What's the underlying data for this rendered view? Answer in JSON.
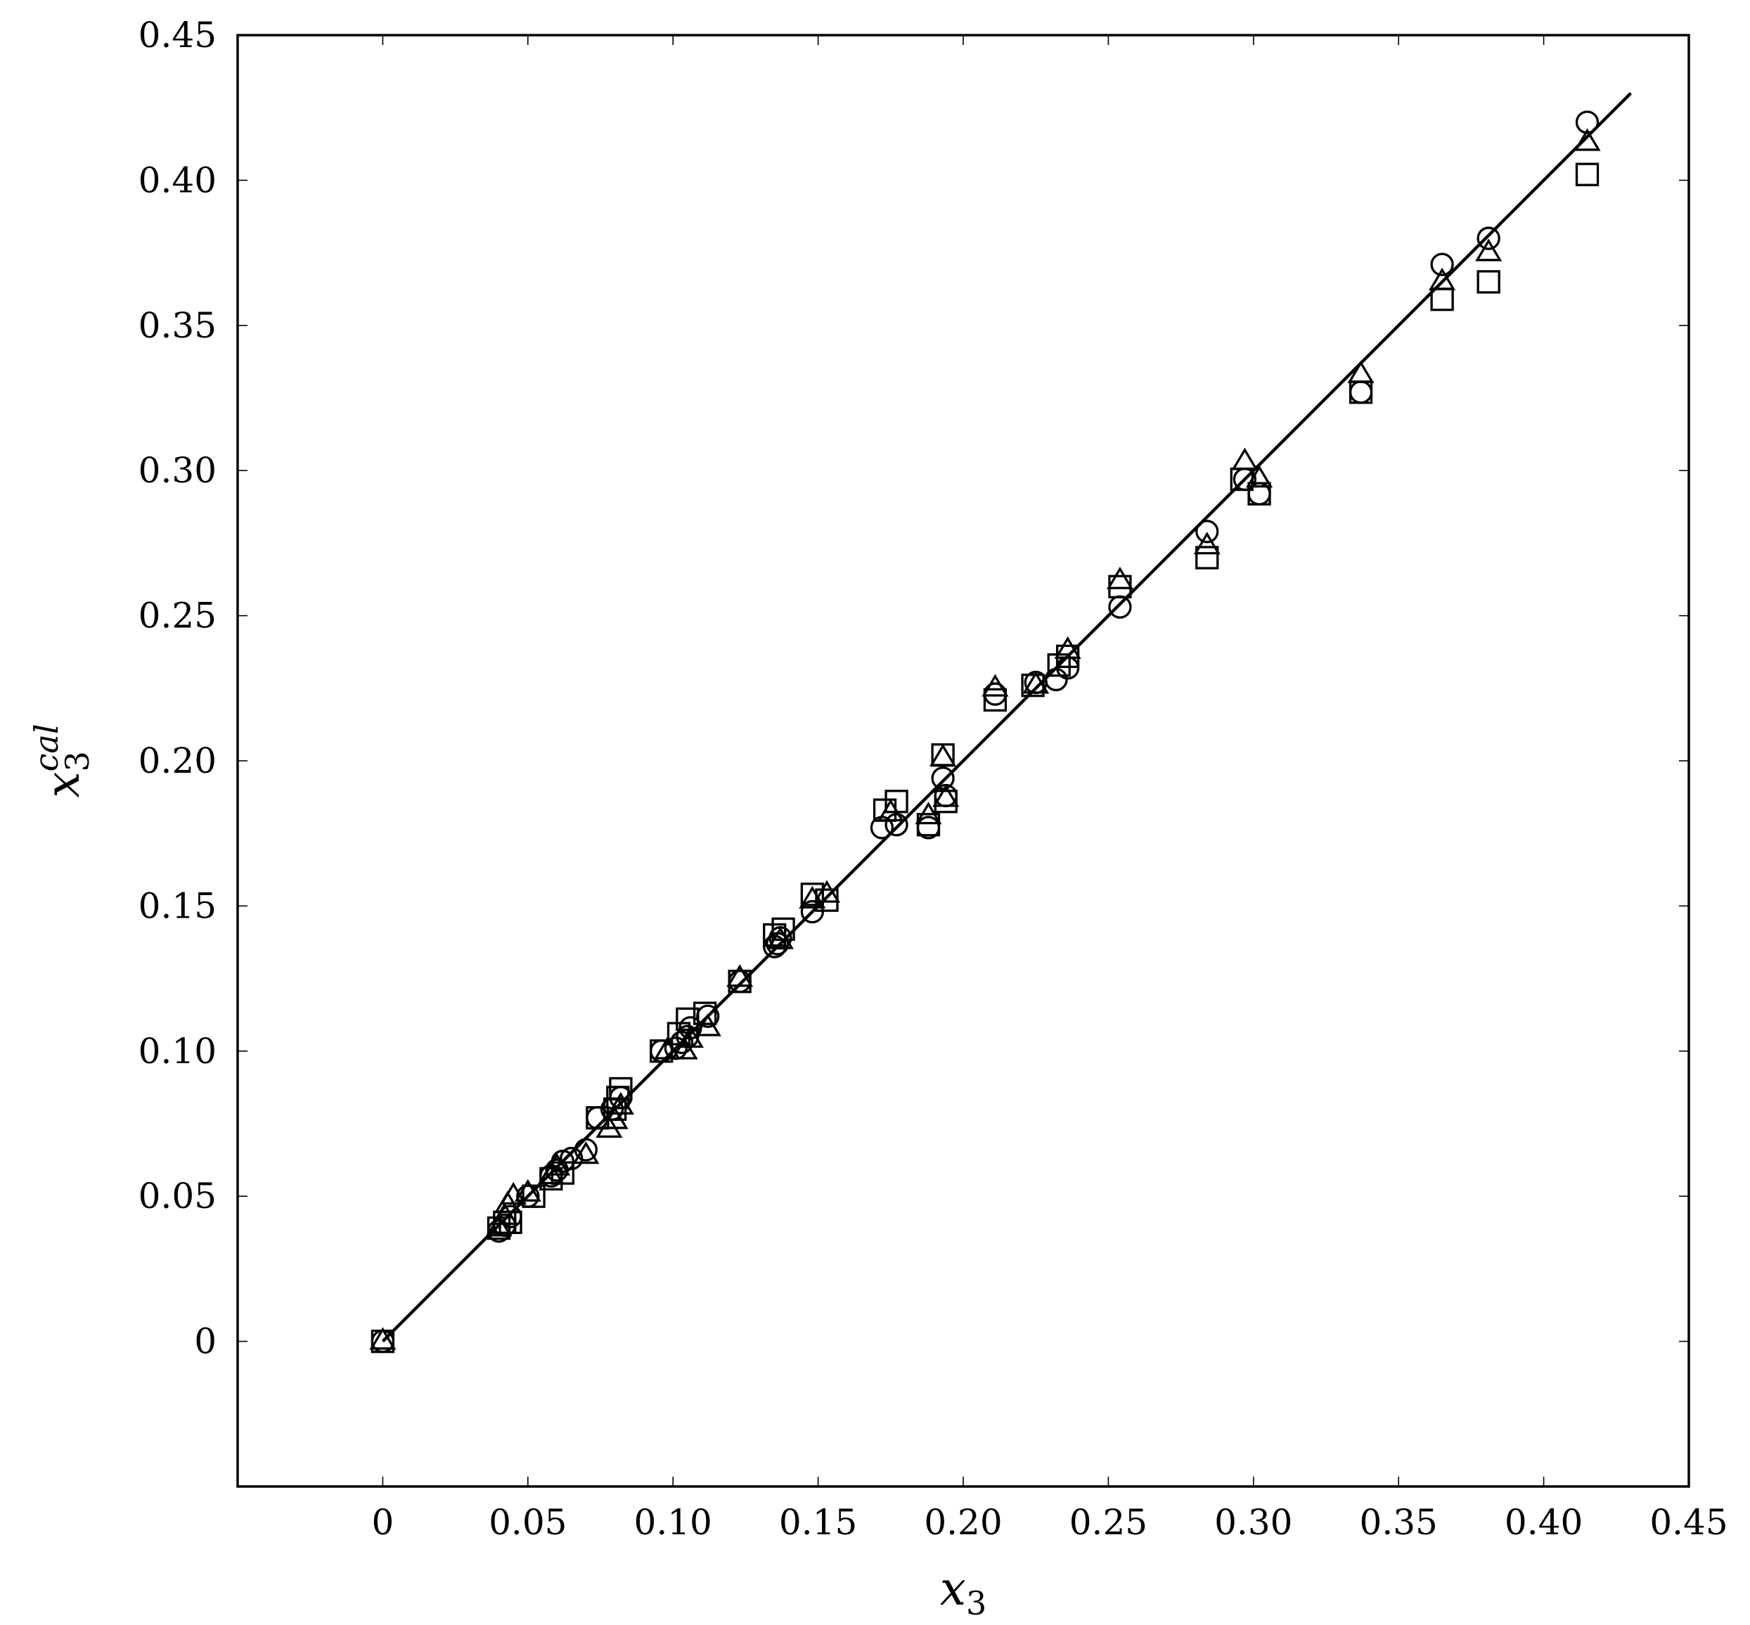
{
  "chart_data": {
    "type": "scatter",
    "title": "",
    "xlabel": "x",
    "xlabel_sub": "3",
    "ylabel": "x",
    "ylabel_sub": "3",
    "ylabel_sup": "cal",
    "xlim": [
      -0.05,
      0.45
    ],
    "ylim": [
      -0.05,
      0.45
    ],
    "x_ticks": [
      0,
      0.05,
      0.1,
      0.15,
      0.2,
      0.25,
      0.3,
      0.35,
      0.4,
      0.45
    ],
    "x_tick_labels": [
      "0",
      "0.05",
      "0.10",
      "0.15",
      "0.20",
      "0.25",
      "0.30",
      "0.35",
      "0.40",
      "0.45"
    ],
    "y_ticks": [
      0,
      0.05,
      0.1,
      0.15,
      0.2,
      0.25,
      0.3,
      0.35,
      0.4,
      0.45
    ],
    "y_tick_labels": [
      "0",
      "0.05",
      "0.10",
      "0.15",
      "0.20",
      "0.25",
      "0.30",
      "0.35",
      "0.40",
      "0.45"
    ],
    "grid": false,
    "legend": "none",
    "line": {
      "x": [
        0,
        0.43
      ],
      "y": [
        0,
        0.43
      ]
    },
    "series": [
      {
        "marker": "circle",
        "points": [
          [
            0,
            0
          ],
          [
            0.04,
            0.038
          ],
          [
            0.042,
            0.04
          ],
          [
            0.044,
            0.043
          ],
          [
            0.05,
            0.05
          ],
          [
            0.058,
            0.057
          ],
          [
            0.06,
            0.059
          ],
          [
            0.062,
            0.062
          ],
          [
            0.065,
            0.063
          ],
          [
            0.07,
            0.066
          ],
          [
            0.074,
            0.077
          ],
          [
            0.079,
            0.08
          ],
          [
            0.082,
            0.084
          ],
          [
            0.096,
            0.1
          ],
          [
            0.101,
            0.101
          ],
          [
            0.103,
            0.103
          ],
          [
            0.105,
            0.105
          ],
          [
            0.106,
            0.108
          ],
          [
            0.112,
            0.112
          ],
          [
            0.123,
            0.124
          ],
          [
            0.135,
            0.136
          ],
          [
            0.136,
            0.137
          ],
          [
            0.137,
            0.139
          ],
          [
            0.148,
            0.148
          ],
          [
            0.172,
            0.177
          ],
          [
            0.177,
            0.178
          ],
          [
            0.188,
            0.177
          ],
          [
            0.193,
            0.194
          ],
          [
            0.194,
            0.188
          ],
          [
            0.211,
            0.223
          ],
          [
            0.225,
            0.227
          ],
          [
            0.232,
            0.228
          ],
          [
            0.236,
            0.232
          ],
          [
            0.254,
            0.253
          ],
          [
            0.284,
            0.279
          ],
          [
            0.297,
            0.297
          ],
          [
            0.302,
            0.292
          ],
          [
            0.337,
            0.327
          ],
          [
            0.365,
            0.371
          ],
          [
            0.381,
            0.38
          ],
          [
            0.415,
            0.42
          ]
        ]
      },
      {
        "marker": "triangle",
        "points": [
          [
            0,
            0
          ],
          [
            0.04,
            0.039
          ],
          [
            0.042,
            0.043
          ],
          [
            0.043,
            0.047
          ],
          [
            0.045,
            0.05
          ],
          [
            0.05,
            0.051
          ],
          [
            0.058,
            0.057
          ],
          [
            0.06,
            0.06
          ],
          [
            0.07,
            0.064
          ],
          [
            0.078,
            0.073
          ],
          [
            0.08,
            0.076
          ],
          [
            0.082,
            0.081
          ],
          [
            0.098,
            0.1
          ],
          [
            0.104,
            0.1
          ],
          [
            0.106,
            0.104
          ],
          [
            0.112,
            0.108
          ],
          [
            0.123,
            0.125
          ],
          [
            0.137,
            0.138
          ],
          [
            0.148,
            0.152
          ],
          [
            0.153,
            0.154
          ],
          [
            0.175,
            0.182
          ],
          [
            0.188,
            0.181
          ],
          [
            0.193,
            0.201
          ],
          [
            0.194,
            0.187
          ],
          [
            0.211,
            0.225
          ],
          [
            0.225,
            0.226
          ],
          [
            0.236,
            0.238
          ],
          [
            0.254,
            0.262
          ],
          [
            0.284,
            0.274
          ],
          [
            0.297,
            0.303
          ],
          [
            0.302,
            0.297
          ],
          [
            0.337,
            0.333
          ],
          [
            0.365,
            0.365
          ],
          [
            0.381,
            0.375
          ],
          [
            0.415,
            0.413
          ]
        ]
      },
      {
        "marker": "square",
        "points": [
          [
            0,
            0
          ],
          [
            0.04,
            0.039
          ],
          [
            0.042,
            0.041
          ],
          [
            0.044,
            0.041
          ],
          [
            0.052,
            0.05
          ],
          [
            0.058,
            0.056
          ],
          [
            0.062,
            0.058
          ],
          [
            0.074,
            0.077
          ],
          [
            0.08,
            0.08
          ],
          [
            0.081,
            0.084
          ],
          [
            0.082,
            0.087
          ],
          [
            0.096,
            0.1
          ],
          [
            0.102,
            0.106
          ],
          [
            0.105,
            0.111
          ],
          [
            0.111,
            0.113
          ],
          [
            0.123,
            0.124
          ],
          [
            0.135,
            0.14
          ],
          [
            0.138,
            0.142
          ],
          [
            0.148,
            0.154
          ],
          [
            0.153,
            0.152
          ],
          [
            0.173,
            0.183
          ],
          [
            0.177,
            0.186
          ],
          [
            0.188,
            0.178
          ],
          [
            0.193,
            0.202
          ],
          [
            0.194,
            0.186
          ],
          [
            0.211,
            0.221
          ],
          [
            0.224,
            0.226
          ],
          [
            0.233,
            0.233
          ],
          [
            0.236,
            0.236
          ],
          [
            0.254,
            0.26
          ],
          [
            0.284,
            0.27
          ],
          [
            0.296,
            0.297
          ],
          [
            0.302,
            0.292
          ],
          [
            0.337,
            0.327
          ],
          [
            0.365,
            0.359
          ],
          [
            0.381,
            0.365
          ],
          [
            0.415,
            0.402
          ]
        ]
      }
    ]
  }
}
